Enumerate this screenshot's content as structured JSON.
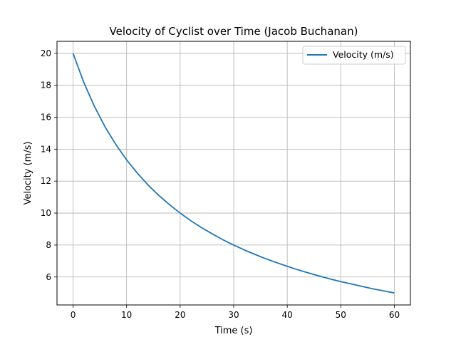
{
  "chart_data": {
    "type": "line",
    "title": "Velocity of Cyclist over Time (Jacob Buchanan)",
    "xlabel": "Time (s)",
    "ylabel": "Velocity (m/s)",
    "xlim": [
      -3,
      63
    ],
    "ylim": [
      4.25,
      20.75
    ],
    "xticks": [
      0,
      10,
      20,
      30,
      40,
      50,
      60
    ],
    "yticks": [
      6,
      8,
      10,
      12,
      14,
      16,
      18,
      20
    ],
    "grid": true,
    "legend_position": "top-right",
    "series": [
      {
        "name": "Velocity (m/s)",
        "color": "#1f77b4",
        "x": [
          0,
          2,
          4,
          6,
          8,
          10,
          12,
          14,
          16,
          18,
          20,
          22,
          24,
          26,
          28,
          30,
          32,
          34,
          36,
          38,
          40,
          42,
          44,
          46,
          48,
          50,
          52,
          54,
          56,
          58,
          60
        ],
        "y": [
          20.0,
          18.18,
          16.67,
          15.38,
          14.29,
          13.33,
          12.5,
          11.76,
          11.11,
          10.53,
          10.0,
          9.52,
          9.09,
          8.7,
          8.33,
          8.0,
          7.69,
          7.41,
          7.14,
          6.9,
          6.67,
          6.45,
          6.25,
          6.06,
          5.88,
          5.71,
          5.56,
          5.41,
          5.26,
          5.13,
          5.0
        ]
      }
    ]
  }
}
